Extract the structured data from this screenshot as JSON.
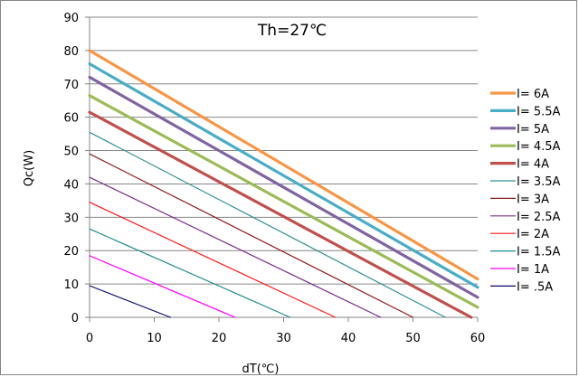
{
  "chart_data": {
    "type": "line",
    "title": "Th=27℃",
    "xlabel": "dT(℃)",
    "ylabel": "Qc(W)",
    "xlim": [
      0,
      60
    ],
    "ylim": [
      0,
      90
    ],
    "xticks": [
      0,
      10,
      20,
      30,
      40,
      50,
      60
    ],
    "yticks": [
      0,
      10,
      20,
      30,
      40,
      50,
      60,
      70,
      80,
      90
    ],
    "grid": "horizontal",
    "legend_position": "right",
    "series": [
      {
        "name": "I= 6A",
        "color": "#F79646",
        "width": 3.2,
        "x": [
          0,
          60
        ],
        "y": [
          80,
          11.5
        ]
      },
      {
        "name": "I= 5.5A",
        "color": "#4BACC6",
        "width": 3.2,
        "x": [
          0,
          60
        ],
        "y": [
          76,
          9
        ]
      },
      {
        "name": "I= 5A",
        "color": "#8064A2",
        "width": 3.2,
        "x": [
          0,
          60
        ],
        "y": [
          72,
          6
        ]
      },
      {
        "name": "I= 4.5A",
        "color": "#9BBB59",
        "width": 3.2,
        "x": [
          0,
          60
        ],
        "y": [
          66.5,
          3
        ]
      },
      {
        "name": "I= 4A",
        "color": "#C0504D",
        "width": 3.2,
        "x": [
          0,
          59
        ],
        "y": [
          61.5,
          0
        ]
      },
      {
        "name": "I= 3.5A",
        "color": "#2F8F8F",
        "width": 1.2,
        "x": [
          0,
          55
        ],
        "y": [
          55.5,
          0
        ]
      },
      {
        "name": "I= 3A",
        "color": "#8B1A1A",
        "width": 1.2,
        "x": [
          0,
          50
        ],
        "y": [
          49,
          0
        ]
      },
      {
        "name": "I= 2.5A",
        "color": "#7B2E8C",
        "width": 1.2,
        "x": [
          0,
          45
        ],
        "y": [
          42,
          0
        ]
      },
      {
        "name": "I= 2A",
        "color": "#FF1A1A",
        "width": 1.2,
        "x": [
          0,
          38
        ],
        "y": [
          34.5,
          0
        ]
      },
      {
        "name": "I= 1.5A",
        "color": "#1F8C8C",
        "width": 1.2,
        "x": [
          0,
          31
        ],
        "y": [
          26.5,
          0
        ]
      },
      {
        "name": "I= 1A",
        "color": "#FF00FF",
        "width": 1.2,
        "x": [
          0,
          22.5
        ],
        "y": [
          18.5,
          0
        ]
      },
      {
        "name": "I= .5A",
        "color": "#0A0A6E",
        "width": 1.2,
        "x": [
          0,
          12.5
        ],
        "y": [
          9.5,
          0
        ]
      }
    ]
  }
}
